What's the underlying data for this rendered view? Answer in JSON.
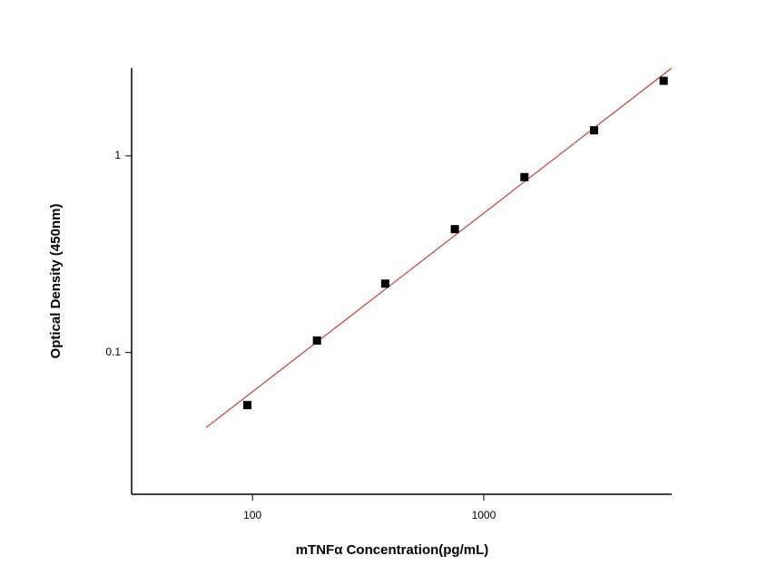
{
  "chart_data": {
    "type": "scatter",
    "x_label": "mTNFα   Concentration(pg/mL)",
    "y_label": "Optical Density (450nm)",
    "x_log": true,
    "y_log": true,
    "xlim": [
      30,
      6500
    ],
    "ylim": [
      0.019,
      2.8
    ],
    "xticks": [
      100,
      1000
    ],
    "yticks": [
      0.1,
      1
    ],
    "x": [
      95,
      190,
      375,
      750,
      1500,
      3000,
      6000
    ],
    "values": [
      0.054,
      0.115,
      0.224,
      0.424,
      0.78,
      1.35,
      2.41
    ],
    "color": "#000000",
    "fit": {
      "x": [
        63,
        6500
      ],
      "values": [
        0.0415,
        2.8
      ],
      "color": "#c04040"
    }
  }
}
